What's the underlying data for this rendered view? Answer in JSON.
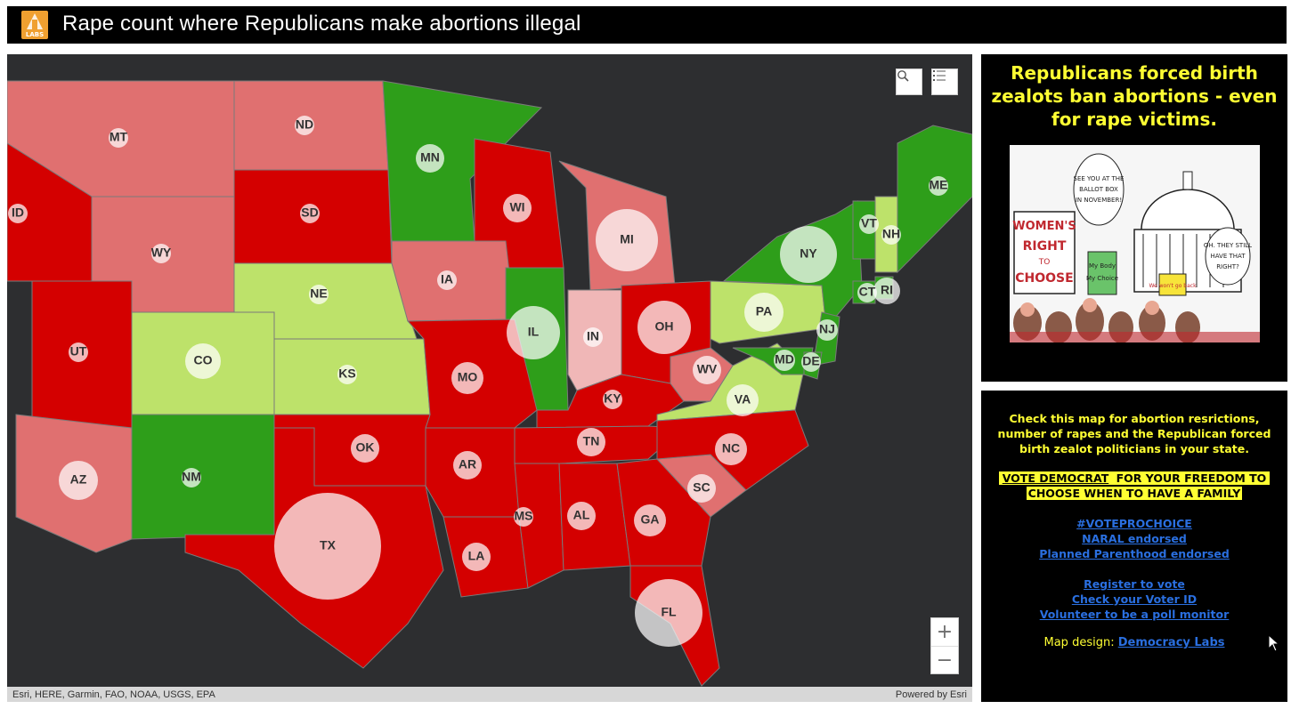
{
  "header": {
    "title": "Rape count where Republicans make abortions illegal",
    "logo_text": "LABS"
  },
  "map": {
    "states": [
      {
        "abbr": "MT",
        "fill": "#e07070"
      },
      {
        "abbr": "ND",
        "fill": "#e07070"
      },
      {
        "abbr": "SD",
        "fill": "#d40000"
      },
      {
        "abbr": "WY",
        "fill": "#e07070"
      },
      {
        "abbr": "ID",
        "fill": "#d40000"
      },
      {
        "abbr": "NE",
        "fill": "#bde26a"
      },
      {
        "abbr": "MN",
        "fill": "#2e9e1a"
      },
      {
        "abbr": "WI",
        "fill": "#d40000"
      },
      {
        "abbr": "MI",
        "fill": "#e07070"
      },
      {
        "abbr": "IA",
        "fill": "#e07070"
      },
      {
        "abbr": "IL",
        "fill": "#2e9e1a"
      },
      {
        "abbr": "IN",
        "fill": "#f0b7b7"
      },
      {
        "abbr": "OH",
        "fill": "#d40000"
      },
      {
        "abbr": "UT",
        "fill": "#d40000"
      },
      {
        "abbr": "CO",
        "fill": "#bde26a"
      },
      {
        "abbr": "KS",
        "fill": "#bde26a"
      },
      {
        "abbr": "MO",
        "fill": "#d40000"
      },
      {
        "abbr": "KY",
        "fill": "#d40000"
      },
      {
        "abbr": "WV",
        "fill": "#e07070"
      },
      {
        "abbr": "VA",
        "fill": "#bde26a"
      },
      {
        "abbr": "PA",
        "fill": "#bde26a"
      },
      {
        "abbr": "NY",
        "fill": "#2e9e1a"
      },
      {
        "abbr": "NJ",
        "fill": "#2e9e1a"
      },
      {
        "abbr": "MD",
        "fill": "#2e9e1a"
      },
      {
        "abbr": "DE",
        "fill": "#2e9e1a"
      },
      {
        "abbr": "CT",
        "fill": "#2e9e1a"
      },
      {
        "abbr": "RI",
        "fill": "#2e9e1a"
      },
      {
        "abbr": "VT",
        "fill": "#2e9e1a"
      },
      {
        "abbr": "NH",
        "fill": "#bde26a"
      },
      {
        "abbr": "ME",
        "fill": "#2e9e1a"
      },
      {
        "abbr": "AZ",
        "fill": "#e07070"
      },
      {
        "abbr": "NM",
        "fill": "#2e9e1a"
      },
      {
        "abbr": "OK",
        "fill": "#d40000"
      },
      {
        "abbr": "TX",
        "fill": "#d40000"
      },
      {
        "abbr": "AR",
        "fill": "#d40000"
      },
      {
        "abbr": "LA",
        "fill": "#d40000"
      },
      {
        "abbr": "MS",
        "fill": "#d40000"
      },
      {
        "abbr": "AL",
        "fill": "#d40000"
      },
      {
        "abbr": "TN",
        "fill": "#d40000"
      },
      {
        "abbr": "GA",
        "fill": "#d40000"
      },
      {
        "abbr": "SC",
        "fill": "#e07070"
      },
      {
        "abbr": "NC",
        "fill": "#d40000"
      },
      {
        "abbr": "FL",
        "fill": "#d40000"
      }
    ],
    "attribution": "Esri, HERE, Garmin, FAO, NOAA, USGS, EPA",
    "powered_by": "Powered by Esri",
    "zoom_in": "+",
    "zoom_out": "−"
  },
  "panel_top": {
    "title": "Republicans forced birth zealots ban abortions - even for rape victims.",
    "cartoon_texts": {
      "bubble_left": "SEE YOU AT THE BALLOT BOX IN NOVEMBER!",
      "bubble_right": "OH. THEY STILL HAVE THAT RIGHT?",
      "sign_main": "WOMEN'S RIGHT TO CHOOSE",
      "sign_small": "My Body My Choice",
      "sign_back": "We won't go back"
    }
  },
  "panel_bottom": {
    "intro": "Check this map for abortion resrictions, number of rapes and the Republican forced birth zealot politicians in your state.",
    "vote_link": "VOTE DEMOCRAT",
    "vote_rest_1": " FOR YOUR FREEDOM TO",
    "vote_rest_2": "CHOOSE WHEN TO HAVE A FAMILY",
    "links_1": [
      "#VOTEPROCHOICE",
      "NARAL endorsed",
      "Planned Parenthood endorsed"
    ],
    "links_2": [
      "Register to vote",
      "Check your Voter ID",
      "Volunteer to be a poll monitor"
    ],
    "design_label": "Map design: ",
    "design_link": "Democracy Labs"
  }
}
